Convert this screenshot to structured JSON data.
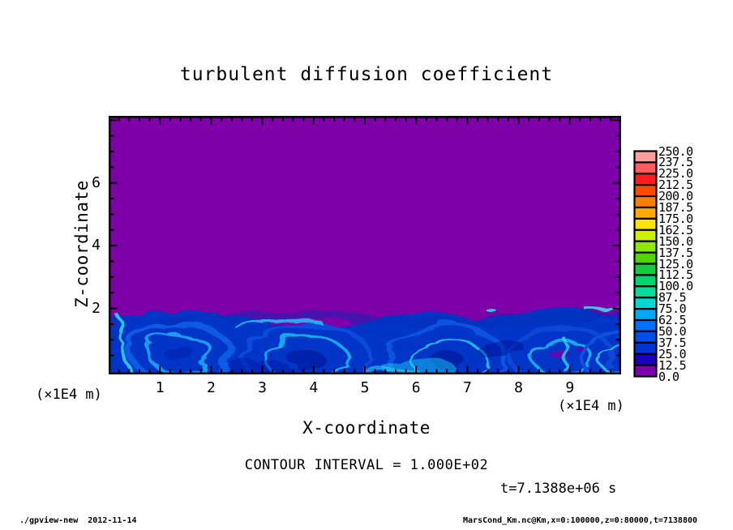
{
  "title": "turbulent diffusion coefficient",
  "plot": {
    "bg_color": "#7d00a9",
    "frame_color": "#000000",
    "x_axis": {
      "label": "X-coordinate",
      "unit": "(×1E4 m)",
      "major_ticks": [
        {
          "value": 1,
          "label": "1"
        },
        {
          "value": 2,
          "label": "2"
        },
        {
          "value": 3,
          "label": "3"
        },
        {
          "value": 4,
          "label": "4"
        },
        {
          "value": 5,
          "label": "5"
        },
        {
          "value": 6,
          "label": "6"
        },
        {
          "value": 7,
          "label": "7"
        },
        {
          "value": 8,
          "label": "8"
        },
        {
          "value": 9,
          "label": "9"
        }
      ],
      "range": [
        0,
        10
      ],
      "minor_step": 0.2
    },
    "y_axis": {
      "label": "Z-coordinate",
      "unit": "(×1E4 m)",
      "major_ticks": [
        {
          "value": 2,
          "label": "2"
        },
        {
          "value": 4,
          "label": "4"
        },
        {
          "value": 6,
          "label": "6"
        }
      ],
      "range": [
        0,
        8.2
      ],
      "minor_step": 0.5
    }
  },
  "colorbar": {
    "labels": [
      "250.0",
      "237.5",
      "225.0",
      "212.5",
      "200.0",
      "187.5",
      "175.0",
      "162.5",
      "150.0",
      "137.5",
      "125.0",
      "112.5",
      "100.0",
      "87.5",
      "75.0",
      "62.5",
      "50.0",
      "37.5",
      "25.0",
      "12.5",
      "0.0"
    ],
    "colors": [
      "#ff9c9c",
      "#ff5c5c",
      "#ff1c1c",
      "#ff4a00",
      "#ff7e00",
      "#ffaa00",
      "#ffe400",
      "#ccf000",
      "#8ce800",
      "#4cd800",
      "#14cc3c",
      "#00d46c",
      "#00dc9c",
      "#00d8d0",
      "#00a8f8",
      "#0070ff",
      "#0050e8",
      "#0034d4",
      "#1800bc",
      "#7c00ac"
    ]
  },
  "annotations": {
    "contour_interval": "CONTOUR INTERVAL = 1.000E+02",
    "time": "t=7.1388e+06 s"
  },
  "footer": {
    "left": "./gpview-new  2012-11-14",
    "right": "MarsCond_Km.nc@Km,x=0:100000,z=0:80000,t=7138800"
  },
  "chart_data": {
    "type": "heatmap",
    "title": "turbulent diffusion coefficient",
    "xlabel": "X-coordinate",
    "ylabel": "Z-coordinate",
    "x_unit_multiplier": "×1E4 m",
    "y_unit_multiplier": "×1E4 m",
    "xlim_m": [
      0,
      100000
    ],
    "zlim_m": [
      0,
      80000
    ],
    "x_tick_values": [
      1,
      2,
      3,
      4,
      5,
      6,
      7,
      8,
      9
    ],
    "y_tick_values": [
      2,
      4,
      6
    ],
    "time_seconds": 7138800,
    "contour_interval": 100,
    "colorbar_levels": [
      0,
      12.5,
      25,
      37.5,
      50,
      62.5,
      75,
      87.5,
      100,
      112.5,
      125,
      137.5,
      150,
      162.5,
      175,
      187.5,
      200,
      212.5,
      225,
      237.5,
      250
    ],
    "field_summary": "Value ≈ 0 (purple) everywhere above the boundary layer; turbulent mixed layer below z ≈ 2×1E4 m filled with eddies of values ~12.5–100 (dark blue to cyan), brightest cyan filaments along vortex edges and near the surface.",
    "turbulent_layer_top_z_x1e4m_vs_x_x1e4m": [
      [
        0,
        2.0
      ],
      [
        0.5,
        1.95
      ],
      [
        1,
        2.05
      ],
      [
        1.5,
        2.0
      ],
      [
        2,
        1.85
      ],
      [
        2.5,
        1.7
      ],
      [
        3,
        1.6
      ],
      [
        3.5,
        1.9
      ],
      [
        4,
        2.0
      ],
      [
        4.5,
        1.95
      ],
      [
        5,
        1.8
      ],
      [
        5.5,
        2.0
      ],
      [
        6,
        2.1
      ],
      [
        6.5,
        2.05
      ],
      [
        7,
        1.9
      ],
      [
        7.5,
        2.0
      ],
      [
        8,
        2.05
      ],
      [
        8.5,
        2.0
      ],
      [
        9,
        1.9
      ],
      [
        9.5,
        1.95
      ],
      [
        10,
        1.9
      ]
    ]
  }
}
